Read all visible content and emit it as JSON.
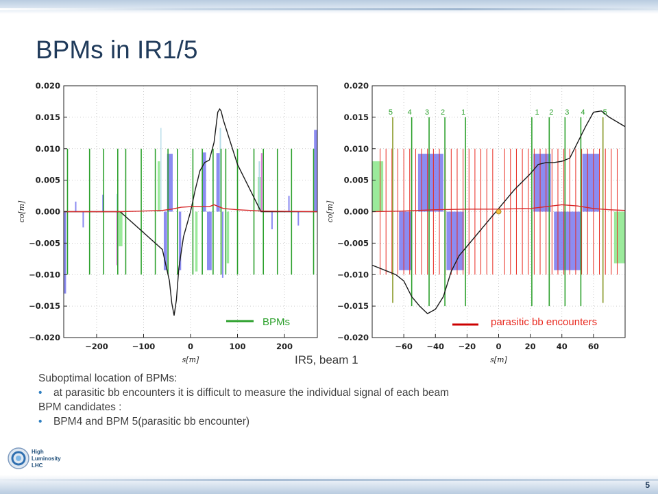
{
  "slide": {
    "title": "BPMs in IR1/5",
    "caption": "IR5, beam 1",
    "page_number": "5",
    "logo_text": [
      "High",
      "Luminosity",
      "LHC"
    ],
    "text_lines": [
      {
        "bullet": false,
        "text": "Suboptimal location of BPMs:"
      },
      {
        "bullet": true,
        "text": "at parasitic bb encounters it is difficult to measure the individual signal of each beam"
      },
      {
        "bullet": false,
        "text": "BPM candidates :"
      },
      {
        "bullet": true,
        "text": "BPM4 and BPM 5(parasitic bb encounter)"
      }
    ]
  },
  "colors": {
    "title": "#1f3a5a",
    "bpm": "#2ca02c",
    "bpm_olive": "#8a9a2a",
    "encounter": "#e8281e",
    "orbit": "#1a1a1a",
    "optics": "#d62728",
    "bar_blue": "#8080f0",
    "bar_green": "#90e890",
    "bar_lightblue": "#add8e6",
    "bar_violet": "#da70d6",
    "marker": "#f0c040",
    "label_green": "#2ca02c"
  },
  "chart_data": [
    {
      "type": "line",
      "xlabel": "s[m]",
      "ylabel": "co[m]",
      "xlim": [
        -270,
        270
      ],
      "ylim": [
        -0.02,
        0.02
      ],
      "xticks": [
        -200,
        -100,
        0,
        100,
        200
      ],
      "xtick_labels": [
        "−200",
        "−100",
        "0",
        "100",
        "200"
      ],
      "yticks": [
        0.02,
        0.015,
        0.01,
        0.005,
        0.0,
        -0.005,
        -0.01,
        -0.015,
        -0.02
      ],
      "ytick_labels": [
        "0.020",
        "0.015",
        "0.010",
        "0.005",
        "0.000",
        "−0.005",
        "−0.010",
        "−0.015",
        "−0.020"
      ],
      "legend": {
        "label": "BPMs",
        "position": "lower-right"
      },
      "series": [
        {
          "role": "orbit",
          "x": [
            -270,
            -150,
            -60,
            -45,
            -40,
            -35,
            -30,
            -25,
            -15,
            0,
            10,
            20,
            30,
            40,
            50,
            55,
            58,
            62,
            65,
            70,
            100,
            150,
            270
          ],
          "y": [
            0,
            0,
            -0.006,
            -0.011,
            -0.0145,
            -0.0165,
            -0.014,
            -0.009,
            -0.004,
            0,
            0.0035,
            0.0065,
            0.0078,
            0.0082,
            0.011,
            0.014,
            0.0158,
            0.0163,
            0.016,
            0.0145,
            0.0075,
            0,
            0
          ]
        },
        {
          "role": "optics",
          "x": [
            -270,
            -150,
            -100,
            -60,
            -40,
            -20,
            0,
            20,
            40,
            50,
            60,
            70,
            100,
            150,
            270
          ],
          "y": [
            0,
            0,
            0.0001,
            0.0002,
            0.0004,
            0.0007,
            0.0008,
            0.0008,
            0.0008,
            0.0011,
            0.0008,
            0.0005,
            0.0003,
            0.0001,
            0
          ]
        }
      ],
      "bpms": [
        {
          "s": -262,
          "y0": -0.01,
          "y1": 0.01
        },
        {
          "s": -215,
          "y0": -0.01,
          "y1": 0.01
        },
        {
          "s": -185,
          "y0": -0.01,
          "y1": 0.01
        },
        {
          "s": -155,
          "y0": -0.01,
          "y1": 0.01
        },
        {
          "s": -138,
          "y0": -0.01,
          "y1": 0.01
        },
        {
          "s": -105,
          "y0": -0.01,
          "y1": 0.01
        },
        {
          "s": -75,
          "y0": -0.01,
          "y1": 0.01
        },
        {
          "s": -48,
          "y0": -0.01,
          "y1": 0.01
        },
        {
          "s": -28,
          "y0": -0.01,
          "y1": 0.01
        },
        {
          "s": 5,
          "y0": -0.01,
          "y1": 0.01
        },
        {
          "s": 25,
          "y0": -0.01,
          "y1": 0.01
        },
        {
          "s": 48,
          "y0": -0.01,
          "y1": 0.01
        },
        {
          "s": 65,
          "y0": -0.01,
          "y1": 0.01
        },
        {
          "s": 75,
          "y0": -0.01,
          "y1": 0.01
        },
        {
          "s": 100,
          "y0": -0.01,
          "y1": 0.01
        },
        {
          "s": 135,
          "y0": -0.01,
          "y1": 0.01
        },
        {
          "s": 155,
          "y0": -0.01,
          "y1": 0.01
        },
        {
          "s": 185,
          "y0": -0.01,
          "y1": 0.01
        },
        {
          "s": 215,
          "y0": -0.01,
          "y1": 0.01
        },
        {
          "s": 262,
          "y0": -0.01,
          "y1": 0.01
        }
      ],
      "bars": [
        {
          "s0": -270,
          "s1": -265,
          "y": -0.013,
          "color": "bar_blue"
        },
        {
          "s0": -246,
          "s1": -243,
          "y": 0.0016,
          "color": "bar_blue"
        },
        {
          "s0": -230,
          "s1": -227,
          "y": -0.0025,
          "color": "bar_blue"
        },
        {
          "s0": -188,
          "s1": -185,
          "y": 0.0027,
          "color": "bar_blue"
        },
        {
          "s0": -158,
          "s1": -155,
          "y": 0.0028,
          "color": "bar_lightblue"
        },
        {
          "s0": -158,
          "s1": -155,
          "y": -0.0085,
          "color": "bar_violet"
        },
        {
          "s0": -153,
          "s1": -145,
          "y": -0.0055,
          "color": "bar_green"
        },
        {
          "s0": -70,
          "s1": -65,
          "y": 0.008,
          "color": "bar_green"
        },
        {
          "s0": -64,
          "s1": -62,
          "y": 0.0133,
          "color": "bar_lightblue"
        },
        {
          "s0": -57,
          "s1": -50,
          "y": -0.0093,
          "color": "bar_blue"
        },
        {
          "s0": -50,
          "s1": -38,
          "y": 0.0092,
          "color": "bar_blue"
        },
        {
          "s0": -25,
          "s1": -20,
          "y": -0.0093,
          "color": "bar_blue"
        },
        {
          "s0": 10,
          "s1": 15,
          "y": -0.0095,
          "color": "bar_green"
        },
        {
          "s0": 25,
          "s1": 33,
          "y": 0.0094,
          "color": "bar_blue"
        },
        {
          "s0": 35,
          "s1": 45,
          "y": -0.0093,
          "color": "bar_blue"
        },
        {
          "s0": 55,
          "s1": 62,
          "y": 0.0093,
          "color": "bar_blue"
        },
        {
          "s0": 62,
          "s1": 65,
          "y": 0.0133,
          "color": "bar_lightblue"
        },
        {
          "s0": 67,
          "s1": 70,
          "y": -0.0105,
          "color": "bar_blue"
        },
        {
          "s0": 77,
          "s1": 82,
          "y": -0.0082,
          "color": "bar_green"
        },
        {
          "s0": 143,
          "s1": 150,
          "y": 0.0055,
          "color": "bar_green"
        },
        {
          "s0": 150,
          "s1": 153,
          "y": 0.0093,
          "color": "bar_violet"
        },
        {
          "s0": 145,
          "s1": 148,
          "y": 0.008,
          "color": "bar_lightblue"
        },
        {
          "s0": 172,
          "s1": 175,
          "y": -0.0028,
          "color": "bar_blue"
        },
        {
          "s0": 208,
          "s1": 211,
          "y": 0.0025,
          "color": "bar_blue"
        },
        {
          "s0": 228,
          "s1": 231,
          "y": -0.0022,
          "color": "bar_blue"
        },
        {
          "s0": 263,
          "s1": 270,
          "y": 0.013,
          "color": "bar_blue"
        }
      ]
    },
    {
      "type": "line",
      "xlabel": "s[m]",
      "ylabel": "co[m]",
      "xlim": [
        -80,
        80
      ],
      "ylim": [
        -0.02,
        0.02
      ],
      "xticks": [
        -60,
        -40,
        -20,
        0,
        20,
        40,
        60
      ],
      "xtick_labels": [
        "−60",
        "−40",
        "−20",
        "0",
        "20",
        "40",
        "60"
      ],
      "yticks": [
        0.02,
        0.015,
        0.01,
        0.005,
        0.0,
        -0.005,
        -0.01,
        -0.015,
        -0.02
      ],
      "ytick_labels": [
        "0.020",
        "0.015",
        "0.010",
        "0.005",
        "0.000",
        "−0.005",
        "−0.010",
        "−0.015",
        "−0.020"
      ],
      "legend": {
        "label": "parasitic bb encounters",
        "position": "lower-right"
      },
      "bpm_labels_left": [
        "5",
        "4",
        "3",
        "2",
        "1"
      ],
      "bpm_labels_left_s": [
        -67,
        -55,
        -44,
        -34,
        -21
      ],
      "bpm_labels_right": [
        "1",
        "2",
        "3",
        "4",
        "5"
      ],
      "bpm_labels_right_s": [
        23,
        32,
        42,
        52,
        66
      ],
      "series": [
        {
          "role": "orbit",
          "x": [
            -80,
            -70,
            -65,
            -60,
            -55,
            -50,
            -45,
            -40,
            -35,
            -30,
            -25,
            -20,
            -10,
            0,
            10,
            20,
            25,
            30,
            35,
            40,
            45,
            50,
            55,
            60,
            65,
            70,
            80
          ],
          "y": [
            -0.0085,
            -0.0095,
            -0.01,
            -0.011,
            -0.0135,
            -0.015,
            -0.0162,
            -0.0155,
            -0.0135,
            -0.0095,
            -0.007,
            -0.0055,
            -0.0025,
            0.0005,
            0.0035,
            0.006,
            0.0075,
            0.0078,
            0.0078,
            0.008,
            0.0085,
            0.011,
            0.0135,
            0.0158,
            0.016,
            0.015,
            0.0135
          ]
        },
        {
          "role": "optics",
          "x": [
            -80,
            -60,
            -40,
            -20,
            0,
            20,
            30,
            40,
            50,
            60,
            70,
            80
          ],
          "y": [
            0.0,
            0.0001,
            0.0003,
            0.0004,
            0.0004,
            0.0005,
            0.0008,
            0.0011,
            0.0009,
            0.0005,
            0.0003,
            0.0002
          ]
        }
      ],
      "marker": {
        "s": 0,
        "y": 0.0
      },
      "encounter_spacing": 3.75,
      "encounter_range": [
        -75,
        75
      ],
      "bpms": [
        {
          "s": -67,
          "y0": -0.0145,
          "y1": 0.015,
          "color": "bpm_olive"
        },
        {
          "s": -55,
          "y0": -0.015,
          "y1": 0.015
        },
        {
          "s": -44,
          "y0": -0.015,
          "y1": 0.015
        },
        {
          "s": -34,
          "y0": -0.015,
          "y1": 0.015
        },
        {
          "s": -21,
          "y0": -0.015,
          "y1": 0.015
        },
        {
          "s": 21,
          "y0": -0.015,
          "y1": 0.015
        },
        {
          "s": 32,
          "y0": -0.015,
          "y1": 0.015
        },
        {
          "s": 42,
          "y0": -0.015,
          "y1": 0.015
        },
        {
          "s": 52,
          "y0": -0.015,
          "y1": 0.015
        },
        {
          "s": 66,
          "y0": -0.0145,
          "y1": 0.015,
          "color": "bpm_olive"
        }
      ],
      "bars": [
        {
          "s0": -80,
          "s1": -73,
          "y": 0.008,
          "color": "bar_green"
        },
        {
          "s0": -63,
          "s1": -55,
          "y": -0.0093,
          "color": "bar_blue"
        },
        {
          "s0": -51,
          "s1": -35,
          "y": 0.0092,
          "color": "bar_blue"
        },
        {
          "s0": -33,
          "s1": -22,
          "y": -0.0093,
          "color": "bar_blue"
        },
        {
          "s0": 22,
          "s1": 33,
          "y": 0.0092,
          "color": "bar_blue"
        },
        {
          "s0": 35,
          "s1": 52,
          "y": -0.0093,
          "color": "bar_blue"
        },
        {
          "s0": 53,
          "s1": 64,
          "y": 0.0092,
          "color": "bar_blue"
        },
        {
          "s0": 73,
          "s1": 80,
          "y": -0.0082,
          "color": "bar_green"
        }
      ]
    }
  ]
}
